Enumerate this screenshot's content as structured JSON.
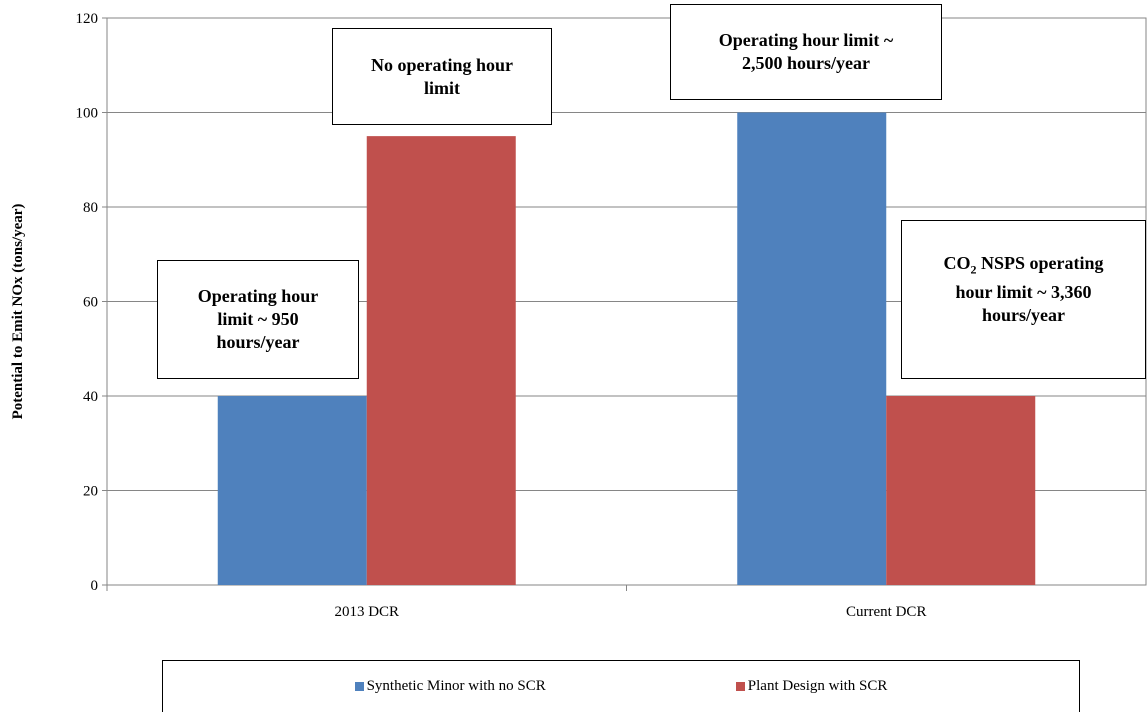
{
  "chart_data": {
    "type": "bar",
    "categories": [
      "2013 DCR",
      "Current DCR"
    ],
    "series": [
      {
        "name": "Synthetic Minor with no SCR",
        "color": "#4f81bd",
        "values": [
          40,
          100
        ]
      },
      {
        "name": "Plant Design with SCR",
        "color": "#c0504d",
        "values": [
          95,
          40
        ]
      }
    ],
    "ylabel": "Potential to Emit NOx (tons/year)",
    "xlabel": "",
    "ylim": [
      0,
      120
    ],
    "yticks": [
      0,
      20,
      40,
      60,
      80,
      100,
      120
    ],
    "grid": true,
    "legend_position": "bottom",
    "annotations": [
      {
        "lines": [
          "Operating hour",
          "limit ~ 950",
          "hours/year"
        ]
      },
      {
        "lines": [
          "No operating hour",
          "limit"
        ]
      },
      {
        "lines": [
          "Operating hour limit ~",
          "2,500 hours/year"
        ]
      },
      {
        "line1_main": "CO",
        "line1_sub": "2",
        "line1_rest": " NSPS operating",
        "lines": [
          "hour limit ~ 3,360",
          "hours/year"
        ]
      }
    ]
  }
}
